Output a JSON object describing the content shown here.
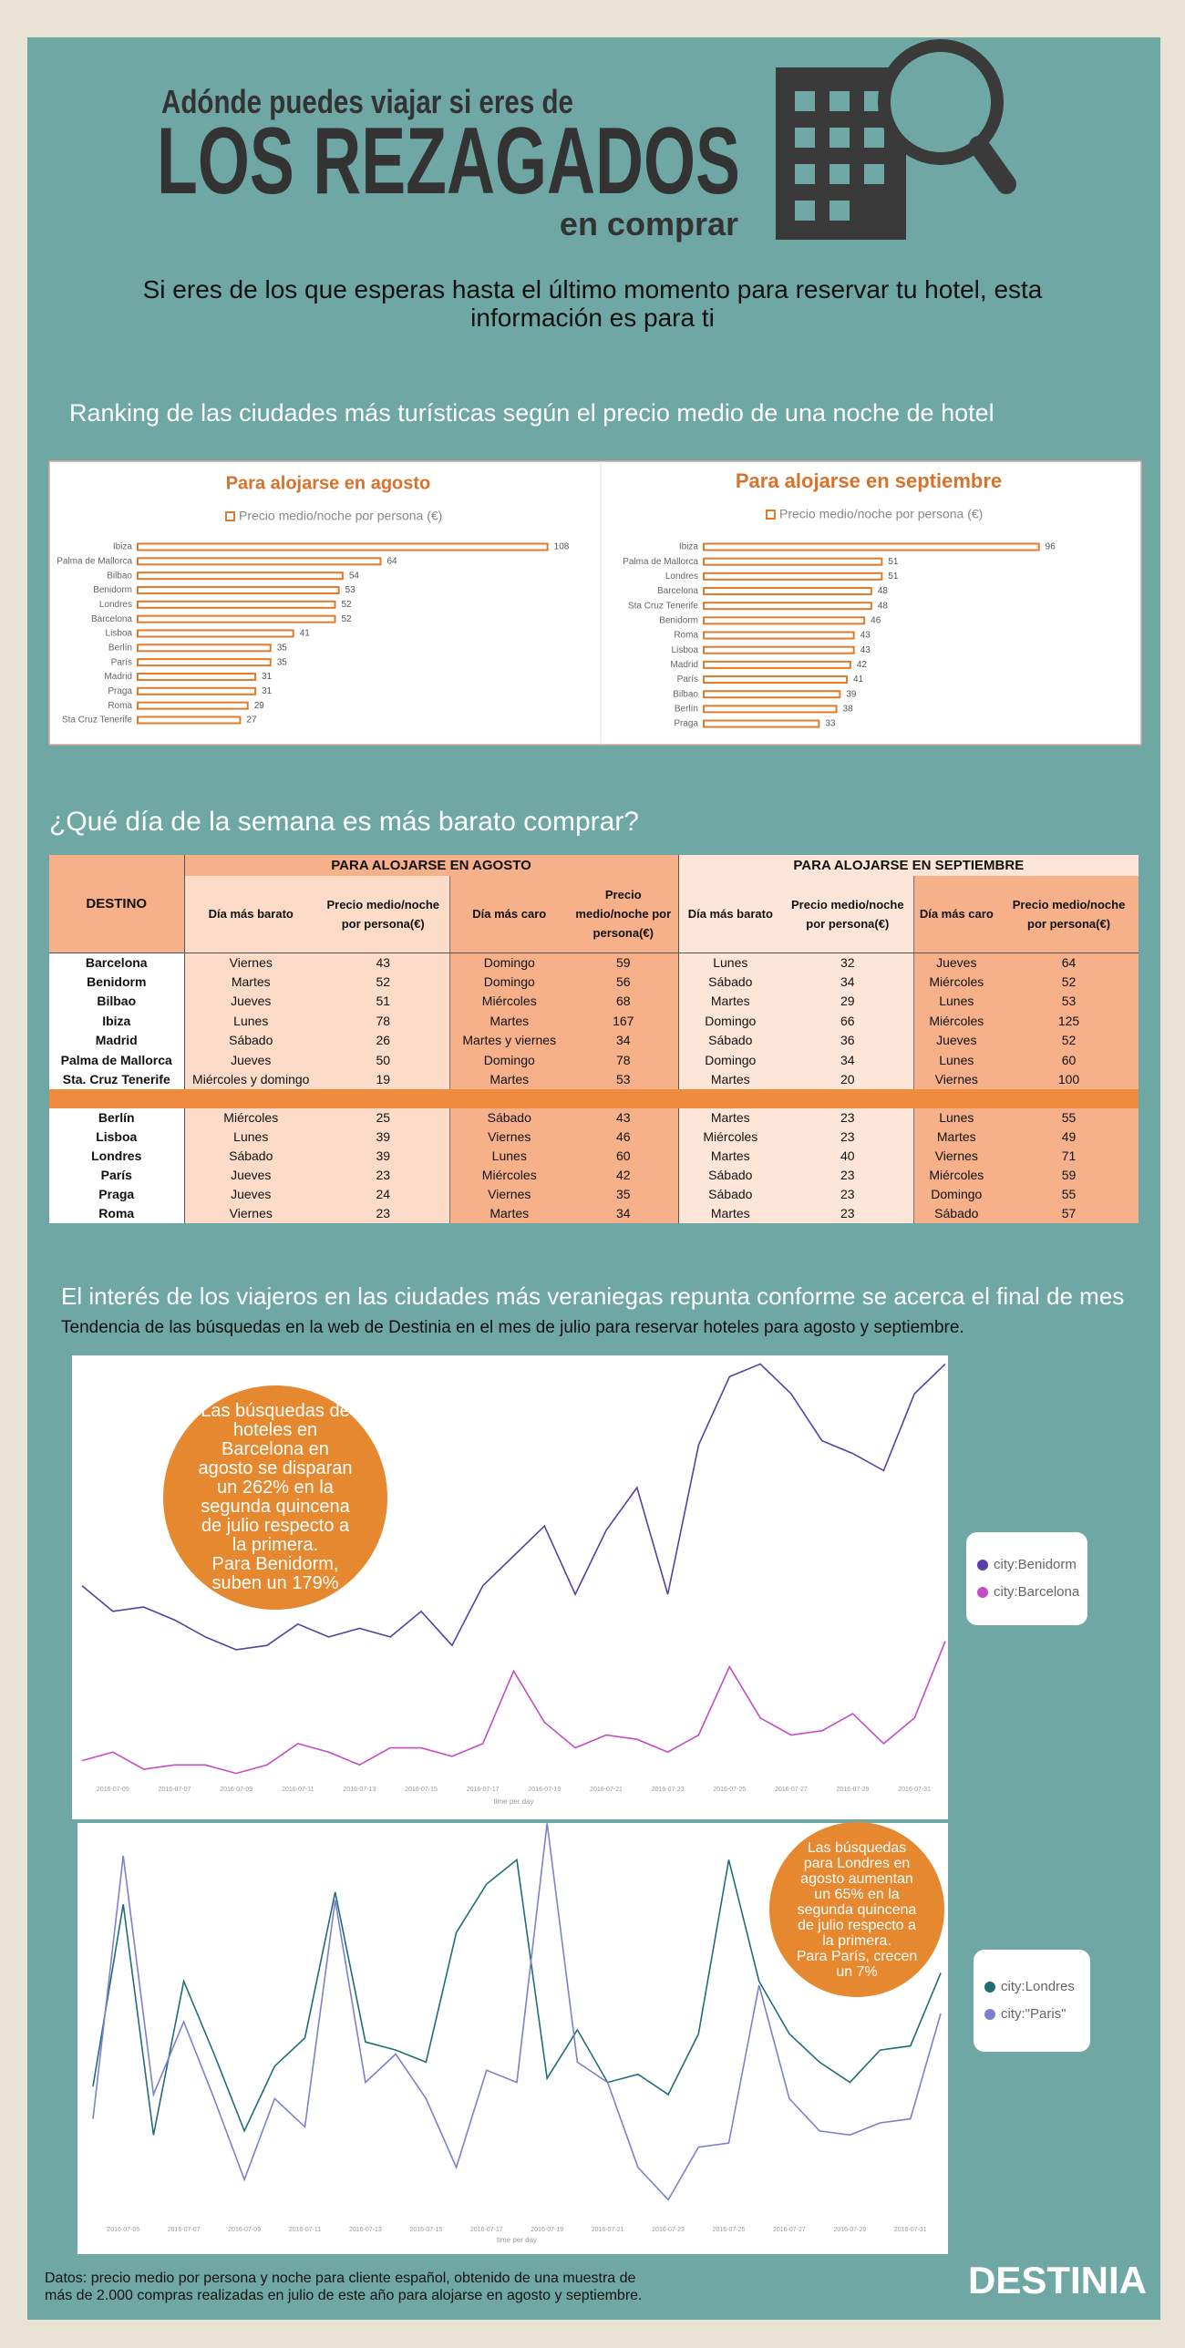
{
  "header": {
    "pre": "Adónde puedes viajar si eres de",
    "title": "LOS REZAGADOS",
    "post": "en comprar"
  },
  "intro": "Si eres de los que esperas hasta el último momento para reservar tu hotel, esta información es para ti",
  "section1_title": "Ranking de las ciudades más turísticas según el precio medio de una noche de hotel",
  "chart_data": [
    {
      "type": "bar",
      "orientation": "horizontal",
      "title": "Para alojarse en agosto",
      "categories": [
        "Ibiza",
        "Palma de Mallorca",
        "Bilbao",
        "Benidorm",
        "Londres",
        "Barcelona",
        "Lisboa",
        "Berlín",
        "París",
        "Madrid",
        "Praga",
        "Roma",
        "Sta Cruz Tenerife"
      ],
      "series": [
        {
          "name": "Precio medio/noche por persona (€)",
          "color": "#e07b2c",
          "values": [
            108,
            64,
            54,
            53,
            52,
            52,
            41,
            35,
            35,
            31,
            31,
            29,
            27
          ]
        }
      ],
      "xlim": [
        0,
        110
      ]
    },
    {
      "type": "bar",
      "orientation": "horizontal",
      "title": "Para alojarse en septiembre",
      "categories": [
        "Ibiza",
        "Palma de Mallorca",
        "Londres",
        "Barcelona",
        "Sta Cruz Tenerife",
        "Benidorm",
        "Roma",
        "Lisboa",
        "Madrid",
        "París",
        "Bilbao",
        "Berlín",
        "Praga"
      ],
      "series": [
        {
          "name": "Precio medio/noche por persona (€)",
          "color": "#e07b2c",
          "values": [
            96,
            51,
            51,
            48,
            48,
            46,
            43,
            43,
            42,
            41,
            39,
            38,
            33
          ]
        }
      ],
      "xlim": [
        0,
        100
      ]
    },
    {
      "type": "line",
      "xlabel": "time per day",
      "categories": [
        null,
        "2016-07-05",
        null,
        "2016-07-07",
        null,
        "2016-07-09",
        null,
        "2016-07-11",
        null,
        "2016-07-13",
        null,
        "2016-07-15",
        null,
        "2016-07-17",
        null,
        "2016-07-19",
        null,
        "2016-07-21",
        null,
        "2016-07-23",
        null,
        "2016-07-25",
        null,
        "2016-07-27",
        null,
        "2016-07-29",
        null,
        "2016-07-31",
        null
      ],
      "ylim": [
        0,
        100
      ],
      "series": [
        {
          "name": "city:Benidorm",
          "color": "#5a3ea8",
          "values": [
            46,
            40,
            41,
            38,
            34,
            31,
            32,
            37,
            34,
            36,
            34,
            40,
            32,
            46,
            53,
            60,
            44,
            59,
            69,
            44,
            79,
            95,
            98,
            91,
            80,
            77,
            73,
            91,
            98
          ]
        },
        {
          "name": "city:Barcelona",
          "color": "#c44cc4",
          "values": [
            5,
            7,
            3,
            4,
            4,
            2,
            4,
            9,
            7,
            4,
            8,
            8,
            6,
            9,
            26,
            14,
            8,
            11,
            10,
            7,
            11,
            27,
            15,
            11,
            12,
            16,
            9,
            15,
            33
          ]
        }
      ],
      "annotation": "Las búsquedas de\nhoteles en\nBarcelona en\nagosto se disparan\nun 262% en la\nsegunda quincena\nde julio respecto a\nla primera.\nPara Benidorm,\nsuben un 179%"
    },
    {
      "type": "line",
      "xlabel": "time per day",
      "categories": [
        null,
        "2016-07-05",
        null,
        "2016-07-07",
        null,
        "2016-07-09",
        null,
        "2016-07-11",
        null,
        "2016-07-13",
        null,
        "2016-07-15",
        null,
        "2016-07-17",
        null,
        "2016-07-19",
        null,
        "2016-07-21",
        null,
        "2016-07-23",
        null,
        "2016-07-25",
        null,
        "2016-07-27",
        null,
        "2016-07-29",
        null,
        "2016-07-31",
        null
      ],
      "ylim": [
        0,
        100
      ],
      "series": [
        {
          "name": "city:Londres",
          "color": "#1f6d78",
          "values": [
            34,
            79,
            22,
            60,
            42,
            23,
            39,
            46,
            82,
            45,
            43,
            40,
            72,
            84,
            90,
            36,
            48,
            35,
            37,
            32,
            47,
            90,
            60,
            47,
            40,
            35,
            43,
            44,
            62
          ]
        },
        {
          "name": "city:\"Paris\"",
          "color": "#7c80cf",
          "values": [
            26,
            91,
            32,
            50,
            31,
            11,
            31,
            24,
            80,
            35,
            42,
            31,
            14,
            38,
            35,
            99,
            40,
            35,
            14,
            6,
            19,
            20,
            59,
            31,
            23,
            22,
            25,
            26,
            52
          ]
        }
      ],
      "annotation": "Las búsquedas\npara Londres en\nagosto aumentan\nun 65% en la\nsegunda quincena\nde julio respecto a\nla primera.\nPara París, crecen\nun 7%"
    }
  ],
  "section2_title": "¿Qué día de la semana es más barato comprar?",
  "table": {
    "group_headers": [
      "DESTINO",
      "PARA ALOJARSE EN AGOSTO",
      "PARA ALOJARSE EN SEPTIEMBRE"
    ],
    "columns": [
      "Día más barato",
      "Precio medio/noche por persona(€)",
      "Día más caro",
      "Precio medio/noche por persona(€)",
      "Día más barato",
      "Precio medio/noche por persona(€)",
      "Día más caro",
      "Precio medio/noche por persona(€)"
    ],
    "groups": [
      [
        [
          "Barcelona",
          "Viernes",
          43,
          "Domingo",
          59,
          "Lunes",
          32,
          "Jueves",
          64
        ],
        [
          "Benidorm",
          "Martes",
          52,
          "Domingo",
          56,
          "Sábado",
          34,
          "Miércoles",
          52
        ],
        [
          "Bilbao",
          "Jueves",
          51,
          "Miércoles",
          68,
          "Martes",
          29,
          "Lunes",
          53
        ],
        [
          "Ibiza",
          "Lunes",
          78,
          "Martes",
          167,
          "Domingo",
          66,
          "Miércoles",
          125
        ],
        [
          "Madrid",
          "Sábado",
          26,
          "Martes y viernes",
          34,
          "Sábado",
          36,
          "Jueves",
          52
        ],
        [
          "Palma de Mallorca",
          "Jueves",
          50,
          "Domingo",
          78,
          "Domingo",
          34,
          "Lunes",
          60
        ],
        [
          "Sta. Cruz Tenerife",
          "Miércoles y domingo",
          19,
          "Martes",
          53,
          "Martes",
          20,
          "Viernes",
          100
        ]
      ],
      [
        [
          "Berlín",
          "Miércoles",
          25,
          "Sábado",
          43,
          "Martes",
          23,
          "Lunes",
          55
        ],
        [
          "Lisboa",
          "Lunes",
          39,
          "Viernes",
          46,
          "Miércoles",
          23,
          "Martes",
          49
        ],
        [
          "Londres",
          "Sábado",
          39,
          "Lunes",
          60,
          "Martes",
          40,
          "Viernes",
          71
        ],
        [
          "París",
          "Jueves",
          23,
          "Miércoles",
          42,
          "Sábado",
          23,
          "Miércoles",
          59
        ],
        [
          "Praga",
          "Jueves",
          24,
          "Viernes",
          35,
          "Sábado",
          23,
          "Domingo",
          55
        ],
        [
          "Roma",
          "Viernes",
          23,
          "Martes",
          34,
          "Martes",
          23,
          "Sábado",
          57
        ]
      ]
    ]
  },
  "section3_title": "El interés de los viajeros en las ciudades más veraniegas repunta conforme se acerca el final de mes",
  "section3_subtitle": "Tendencia de las búsquedas en la web de Destinia en el mes de julio para reservar hoteles para agosto y septiembre.",
  "footer": {
    "note": "Datos: precio medio por persona y noche para cliente español, obtenido de una muestra de\nmás de 2.000 compras realizadas en julio de este año para alojarse en agosto y septiembre.",
    "logo": "DESTINIA"
  }
}
